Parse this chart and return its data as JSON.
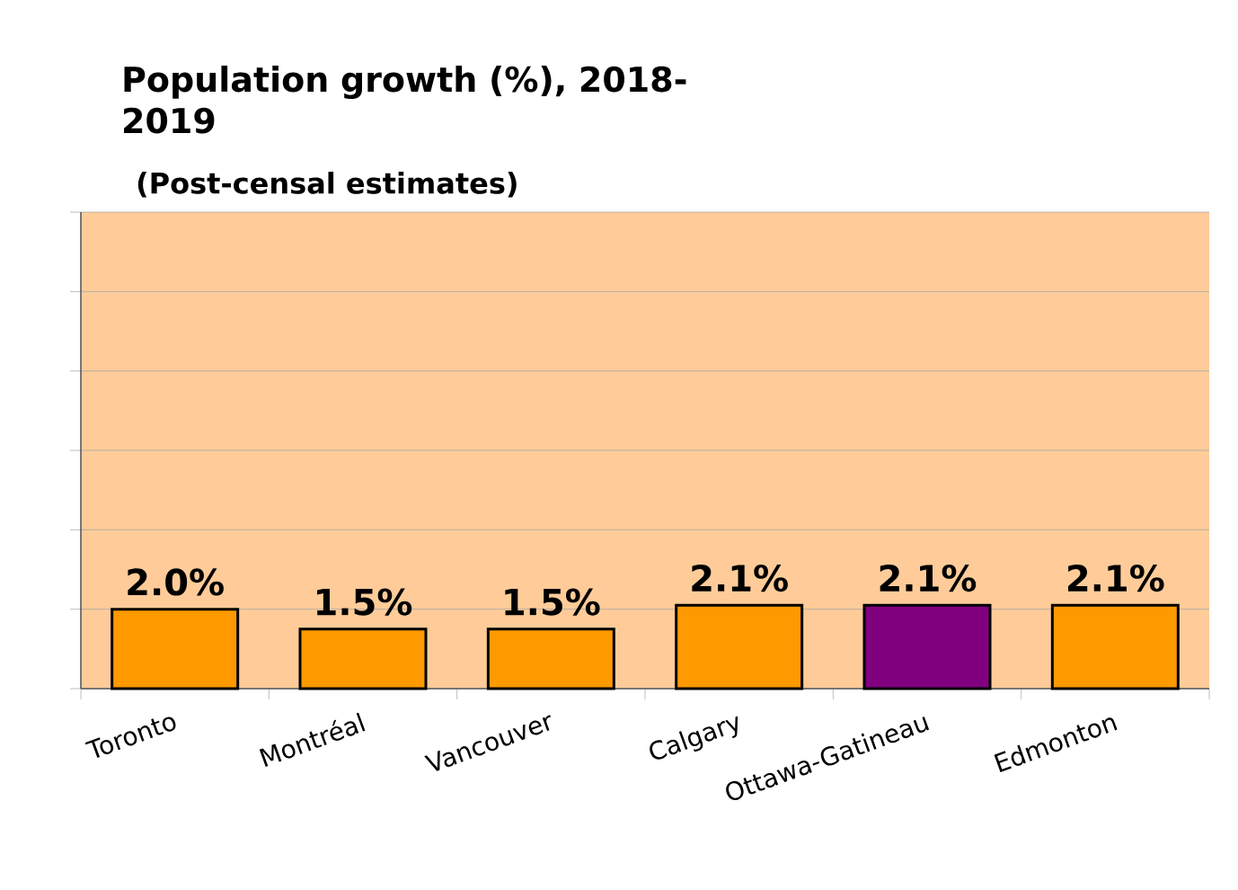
{
  "chart_data": {
    "type": "bar",
    "title": "Population growth (%), 2018-2019",
    "subtitle": "(Post-censal estimates)",
    "categories": [
      "Toronto",
      "Montréal",
      "Vancouver",
      "Calgary",
      "Ottawa-Gatineau",
      "Edmonton"
    ],
    "values": [
      2.0,
      1.5,
      1.5,
      2.1,
      2.1,
      2.1
    ],
    "value_labels": [
      "2.0%",
      "1.5%",
      "1.5%",
      "2.1%",
      "2.1%",
      "2.1%"
    ],
    "colors": [
      "#ff9900",
      "#ff9900",
      "#ff9900",
      "#ff9900",
      "#800080",
      "#ff9900"
    ],
    "ylim": [
      0,
      12
    ],
    "yticks": [
      {
        "value": 0,
        "label": null
      },
      {
        "value": 2,
        "label": null
      },
      {
        "value": 4,
        "label": null
      },
      {
        "value": 6,
        "label": null
      },
      {
        "value": 8,
        "label": null
      },
      {
        "value": 10,
        "label": null
      },
      {
        "value": 12,
        "label": null
      }
    ],
    "tick_labels": "x",
    "grid": "y"
  }
}
